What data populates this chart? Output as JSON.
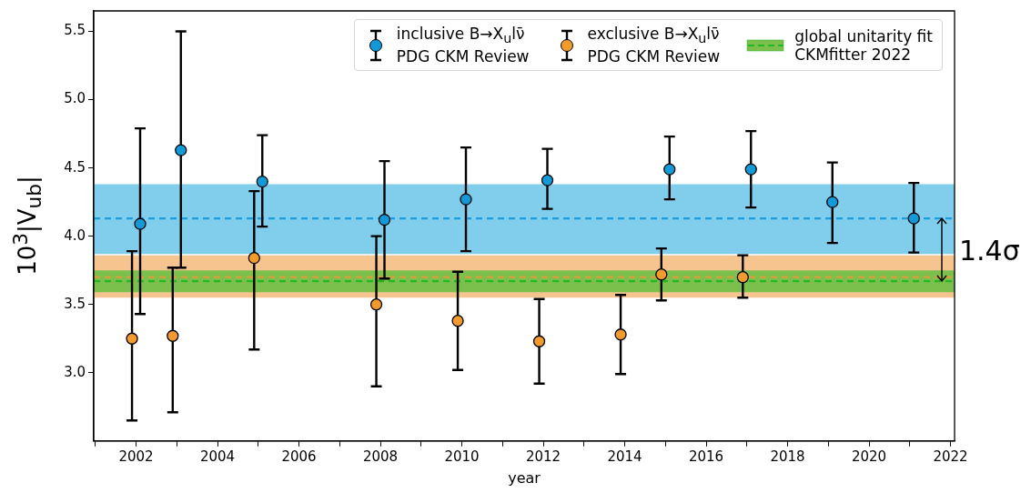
{
  "chart_data": {
    "type": "scatter",
    "xlabel": "year",
    "ylabel": "10$^{3}$|V$_{ub}$|",
    "xlim": [
      2000.96,
      2022.1
    ],
    "xticks": [
      {
        "value": 2001,
        "label": null
      },
      2002,
      {
        "value": 2003,
        "label": null
      },
      2004,
      {
        "value": 2005,
        "label": null
      },
      2006,
      {
        "value": 2007,
        "label": null
      },
      2008,
      {
        "value": 2009,
        "label": null
      },
      2010,
      {
        "value": 2011,
        "label": null
      },
      2012,
      {
        "value": 2013,
        "label": null
      },
      2014,
      {
        "value": 2015,
        "label": null
      },
      2016,
      {
        "value": 2017,
        "label": null
      },
      2018,
      {
        "value": 2019,
        "label": null
      },
      2020,
      {
        "value": 2021,
        "label": null
      },
      2022
    ],
    "ylim": [
      2.5,
      5.65
    ],
    "yticks": [
      {
        "value": 3,
        "label": "3.0"
      },
      {
        "value": 3.5,
        "label": "3.5"
      },
      {
        "value": 4,
        "label": "4.0"
      },
      {
        "value": 4.5,
        "label": "4.5"
      },
      {
        "value": 5,
        "label": "5.0"
      },
      {
        "value": 5.5,
        "label": "5.5"
      }
    ],
    "series": [
      {
        "name": "inclusive B→X$_{u}$lν̄\nPDG CKM Review",
        "color": "#129ad8",
        "x": [
          2002.1,
          2003.1,
          2005.1,
          2008.1,
          2010.1,
          2012.1,
          2015.1,
          2017.1,
          2019.1,
          2021.1
        ],
        "values": [
          4.09,
          4.63,
          4.4,
          4.12,
          4.27,
          4.41,
          4.49,
          4.49,
          4.25,
          4.13
        ],
        "errors": [
          [
            3.43,
            4.79
          ],
          [
            3.77,
            5.5
          ],
          [
            4.07,
            4.74
          ],
          [
            3.69,
            4.55
          ],
          [
            3.89,
            4.65
          ],
          [
            4.2,
            4.64
          ],
          [
            4.27,
            4.73
          ],
          [
            4.21,
            4.77
          ],
          [
            3.95,
            4.54
          ],
          [
            3.88,
            4.39
          ]
        ]
      },
      {
        "name": "exclusive B→X$_{u}$lν̄\nPDG CKM Review",
        "color": "#f39a2c",
        "x": [
          2001.9,
          2002.9,
          2004.9,
          2007.9,
          2009.9,
          2011.9,
          2013.9,
          2014.9,
          2016.9
        ],
        "values": [
          3.25,
          3.27,
          3.84,
          3.5,
          3.38,
          3.23,
          3.28,
          3.72,
          3.7
        ],
        "errors": [
          [
            2.65,
            3.89
          ],
          [
            2.71,
            3.77
          ],
          [
            3.17,
            4.33
          ],
          [
            2.9,
            4.0
          ],
          [
            3.02,
            3.74
          ],
          [
            2.92,
            3.54
          ],
          [
            2.99,
            3.57
          ],
          [
            3.53,
            3.91
          ],
          [
            3.55,
            3.86
          ]
        ]
      }
    ],
    "bands": [
      {
        "axis": "y",
        "from": 3.87,
        "to": 4.38,
        "color": "#80cdec"
      },
      {
        "axis": "y",
        "from": 3.55,
        "to": 3.86,
        "color": "#f6c48f"
      },
      {
        "axis": "y",
        "from": 3.59,
        "to": 3.75,
        "color": "#7bbf4c",
        "label": "global unitarity fit\nCKMfitter 2022"
      }
    ],
    "ref_lines": [
      {
        "axis": "y",
        "value": 4.13,
        "color": "#1a9ee0",
        "line_style": "dashed"
      },
      {
        "axis": "y",
        "value": 3.7,
        "color": "#d9a03a",
        "line_style": "dashed"
      },
      {
        "axis": "y",
        "value": 3.67,
        "color": "#22b822",
        "line_style": "dashed"
      }
    ],
    "annotations": [
      "1.4σ"
    ],
    "marker": "circle",
    "grid": false,
    "legend": "top right"
  }
}
